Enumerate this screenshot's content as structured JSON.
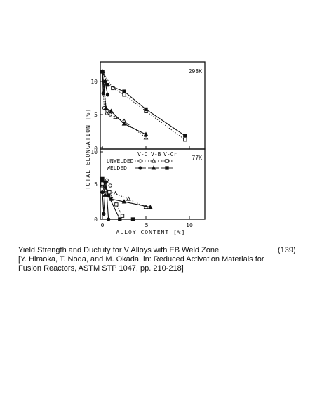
{
  "chart_data": {
    "type": "line",
    "xlabel": "ALLOY CONTENT [%]",
    "ylabel": "TOTAL ELONGATION [%]",
    "xlim": [
      0,
      10
    ],
    "x_ticks": [
      "0",
      "5",
      "10"
    ],
    "legend": {
      "alloy_headers": [
        "V-C",
        "V-B",
        "V-Cr"
      ],
      "row_labels": [
        "UNWELDED",
        "WELDED"
      ],
      "placement": "top-right of lower panel"
    },
    "panels": [
      {
        "label": "298K",
        "ylim": [
          0,
          12
        ],
        "y_ticks": [
          "0",
          "5",
          "10"
        ],
        "series": [
          {
            "alloy": "V-C",
            "state": "UNWELDED",
            "marker": "circle-open",
            "line": "dotted",
            "x": [
              0,
              0.2,
              0.5,
              0.9
            ],
            "y": [
              11.5,
              6,
              5.5,
              5
            ]
          },
          {
            "alloy": "V-C",
            "state": "WELDED",
            "marker": "circle-filled",
            "line": "solid",
            "x": [
              0,
              0.1,
              0.3,
              0.6
            ],
            "y": [
              11.5,
              8.2,
              10,
              8
            ]
          },
          {
            "alloy": "V-B",
            "state": "UNWELDED",
            "marker": "triangle-open",
            "line": "dotted",
            "x": [
              0,
              0.5,
              1.5,
              2.5,
              5
            ],
            "y": [
              11.5,
              5.2,
              4.6,
              4,
              1.5
            ]
          },
          {
            "alloy": "V-B",
            "state": "WELDED",
            "marker": "triangle-filled",
            "line": "solid",
            "x": [
              0,
              0.4,
              1,
              2.5,
              5
            ],
            "y": [
              11.5,
              6,
              5.5,
              3.6,
              2
            ]
          },
          {
            "alloy": "V-Cr",
            "state": "UNWELDED",
            "marker": "square-open",
            "line": "dotted",
            "x": [
              0,
              1.2,
              2.5,
              5,
              9.5
            ],
            "y": [
              11.5,
              9,
              8,
              5.5,
              1.2
            ]
          },
          {
            "alloy": "V-Cr",
            "state": "WELDED",
            "marker": "square-filled",
            "line": "solid",
            "x": [
              0,
              0.6,
              2.5,
              5,
              9.5
            ],
            "y": [
              11.5,
              9.5,
              8.5,
              5.8,
              1.8
            ]
          }
        ]
      },
      {
        "label": "77K",
        "ylim": [
          0,
          10
        ],
        "y_ticks": [
          "0",
          "5",
          "10"
        ],
        "series": [
          {
            "alloy": "V-C",
            "state": "UNWELDED",
            "marker": "circle-open",
            "line": "dotted",
            "x": [
              0,
              0.3,
              0.5,
              0.9
            ],
            "y": [
              5.8,
              4.5,
              5.8,
              5
            ]
          },
          {
            "alloy": "V-C",
            "state": "WELDED",
            "marker": "circle-filled",
            "line": "solid",
            "x": [
              0,
              0.15,
              0.4,
              0.7
            ],
            "y": [
              4,
              0.8,
              5.5,
              0
            ]
          },
          {
            "alloy": "V-B",
            "state": "UNWELDED",
            "marker": "triangle-open",
            "line": "dotted",
            "x": [
              0,
              0.4,
              1.5,
              3,
              5
            ],
            "y": [
              5,
              4.3,
              3.8,
              3,
              1.8
            ]
          },
          {
            "alloy": "V-B",
            "state": "WELDED",
            "marker": "triangle-filled",
            "line": "solid",
            "x": [
              0,
              0.3,
              1,
              2.5,
              5.5
            ],
            "y": [
              5.8,
              3.6,
              3,
              2.6,
              1.8
            ]
          },
          {
            "alloy": "V-Cr",
            "state": "UNWELDED",
            "marker": "square-open",
            "line": "dotted",
            "x": [
              0,
              0.8,
              1.6,
              2.3
            ],
            "y": [
              5.3,
              4,
              2.2,
              0.5
            ]
          },
          {
            "alloy": "V-Cr",
            "state": "WELDED",
            "marker": "square-filled",
            "line": "solid",
            "x": [
              0,
              0.7,
              2,
              3.5
            ],
            "y": [
              6,
              3.5,
              0,
              0
            ]
          }
        ]
      }
    ]
  },
  "caption": {
    "line1": "Yield Strength and Ductility for V Alloys with EB Weld Zone",
    "line2": "[Y. Hiraoka, T. Noda, and M. Okada, in: Reduced Activation Materials for",
    "line3": "Fusion Reactors, ASTM STP 1047, pp. 210-218]",
    "figure_number": "(139)"
  }
}
